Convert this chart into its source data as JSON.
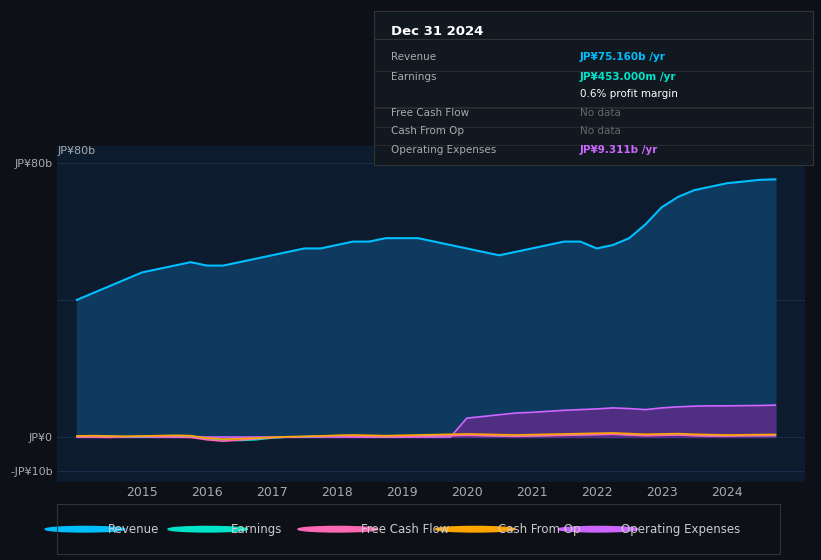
{
  "background_color": "#0d1117",
  "plot_bg_color": "#0d1b2e",
  "grid_color": "#1e3050",
  "years": [
    2014.0,
    2014.25,
    2014.5,
    2014.75,
    2015.0,
    2015.25,
    2015.5,
    2015.75,
    2016.0,
    2016.25,
    2016.5,
    2016.75,
    2017.0,
    2017.25,
    2017.5,
    2017.75,
    2018.0,
    2018.25,
    2018.5,
    2018.75,
    2019.0,
    2019.25,
    2019.5,
    2019.75,
    2020.0,
    2020.25,
    2020.5,
    2020.75,
    2021.0,
    2021.25,
    2021.5,
    2021.75,
    2022.0,
    2022.25,
    2022.5,
    2022.75,
    2023.0,
    2023.25,
    2023.5,
    2023.75,
    2024.0,
    2024.25,
    2024.5,
    2024.75
  ],
  "revenue": [
    40,
    42,
    44,
    46,
    48,
    49,
    50,
    51,
    50,
    50,
    51,
    52,
    53,
    54,
    55,
    55,
    56,
    57,
    57,
    58,
    58,
    58,
    57,
    56,
    55,
    54,
    53,
    54,
    55,
    56,
    57,
    57,
    55,
    56,
    58,
    62,
    67,
    70,
    72,
    73,
    74,
    74.5,
    75,
    75.16
  ],
  "earnings": [
    0.2,
    0.3,
    0.2,
    0.1,
    0.1,
    0.2,
    0.2,
    0.3,
    -0.5,
    -0.8,
    -1.0,
    -0.8,
    -0.3,
    0.0,
    0.1,
    0.2,
    0.3,
    0.3,
    0.2,
    0.1,
    0.2,
    0.3,
    0.4,
    0.5,
    0.6,
    0.5,
    0.4,
    0.3,
    0.4,
    0.5,
    0.6,
    0.7,
    0.8,
    0.9,
    0.7,
    0.5,
    0.6,
    0.7,
    0.5,
    0.4,
    0.4,
    0.45,
    0.45,
    0.453
  ],
  "free_cash_flow": [
    0.1,
    0.0,
    -0.1,
    0.1,
    0.2,
    0.1,
    0.0,
    -0.1,
    -0.8,
    -1.2,
    -0.9,
    -0.5,
    -0.2,
    0.0,
    0.1,
    0.2,
    0.3,
    0.2,
    0.1,
    0.0,
    0.1,
    0.2,
    0.3,
    0.4,
    0.5,
    0.4,
    0.3,
    0.2,
    0.3,
    0.4,
    0.5,
    0.6,
    0.7,
    0.8,
    0.6,
    0.4,
    0.5,
    0.6,
    0.4,
    0.3,
    0.3,
    0.35,
    0.4,
    0.45
  ],
  "cash_from_op": [
    0.3,
    0.4,
    0.3,
    0.2,
    0.3,
    0.4,
    0.5,
    0.4,
    -0.3,
    -0.6,
    -0.5,
    -0.3,
    -0.1,
    0.1,
    0.2,
    0.3,
    0.5,
    0.6,
    0.5,
    0.4,
    0.5,
    0.6,
    0.7,
    0.8,
    0.9,
    0.8,
    0.7,
    0.6,
    0.7,
    0.8,
    0.9,
    1.0,
    1.1,
    1.2,
    1.0,
    0.8,
    0.9,
    1.0,
    0.8,
    0.7,
    0.6,
    0.65,
    0.7,
    0.75
  ],
  "operating_expenses": [
    0.0,
    0.0,
    0.0,
    0.0,
    0.0,
    0.0,
    0.0,
    0.0,
    0.0,
    0.0,
    0.0,
    0.0,
    0.0,
    0.0,
    0.0,
    0.0,
    0.0,
    0.0,
    0.0,
    0.0,
    0.0,
    0.0,
    0.0,
    0.0,
    5.5,
    6.0,
    6.5,
    7.0,
    7.2,
    7.5,
    7.8,
    8.0,
    8.2,
    8.5,
    8.3,
    8.0,
    8.5,
    8.8,
    9.0,
    9.1,
    9.1,
    9.15,
    9.2,
    9.311
  ],
  "ylim": [
    -13,
    85
  ],
  "ytick_values": [
    -10,
    0,
    80
  ],
  "ytick_labels": [
    "-JP¥10b",
    "JP¥0",
    "JP¥80b"
  ],
  "xticks": [
    2015,
    2016,
    2017,
    2018,
    2019,
    2020,
    2021,
    2022,
    2023,
    2024
  ],
  "xlim": [
    2013.7,
    2025.2
  ],
  "revenue_color": "#00bfff",
  "earnings_color": "#00e5c8",
  "free_cash_flow_color": "#ff69b4",
  "cash_from_op_color": "#ffa500",
  "operating_expenses_color": "#cc66ff",
  "revenue_fill_color": "#0d3a5e",
  "operating_expenses_fill_color": "#5c2e8a",
  "info_box": {
    "title": "Dec 31 2024",
    "title_color": "#ffffff",
    "bg_color": "#111820",
    "border_color": "#333333",
    "rows": [
      {
        "label": "Revenue",
        "value": "JP¥75.160b /yr",
        "value_color": "#00bfff",
        "label_color": "#aaaaaa"
      },
      {
        "label": "Earnings",
        "value": "JP¥453.000m /yr",
        "value_color": "#00e5c8",
        "label_color": "#aaaaaa"
      },
      {
        "label": "",
        "value": "0.6% profit margin",
        "value_color": "#ffffff",
        "label_color": "#aaaaaa"
      },
      {
        "label": "Free Cash Flow",
        "value": "No data",
        "value_color": "#666666",
        "label_color": "#aaaaaa"
      },
      {
        "label": "Cash From Op",
        "value": "No data",
        "value_color": "#666666",
        "label_color": "#aaaaaa"
      },
      {
        "label": "Operating Expenses",
        "value": "JP¥9.311b /yr",
        "value_color": "#cc66ff",
        "label_color": "#aaaaaa"
      }
    ]
  },
  "legend_labels": [
    "Revenue",
    "Earnings",
    "Free Cash Flow",
    "Cash From Op",
    "Operating Expenses"
  ],
  "legend_colors": [
    "#00bfff",
    "#00e5c8",
    "#ff69b4",
    "#ffa500",
    "#cc66ff"
  ],
  "ylabel_80b": "JP¥80b"
}
